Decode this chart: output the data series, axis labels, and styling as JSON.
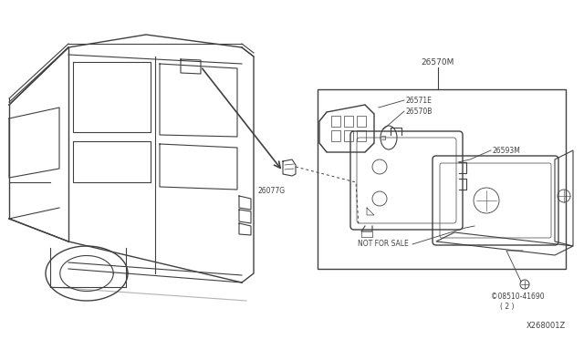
{
  "bg_color": "#ffffff",
  "line_color": "#404040",
  "fig_width": 6.4,
  "fig_height": 3.72,
  "dpi": 100,
  "watermark": "X268001Z",
  "label_26570M": "26570M",
  "label_26571E": "26571E",
  "label_26570B": "26570B",
  "label_26593M": "26593M",
  "label_26077G": "26077G",
  "label_screw": "©08510-41690",
  "label_screw_qty": "( 2 )",
  "label_not_for_sale": "NOT FOR SALE"
}
